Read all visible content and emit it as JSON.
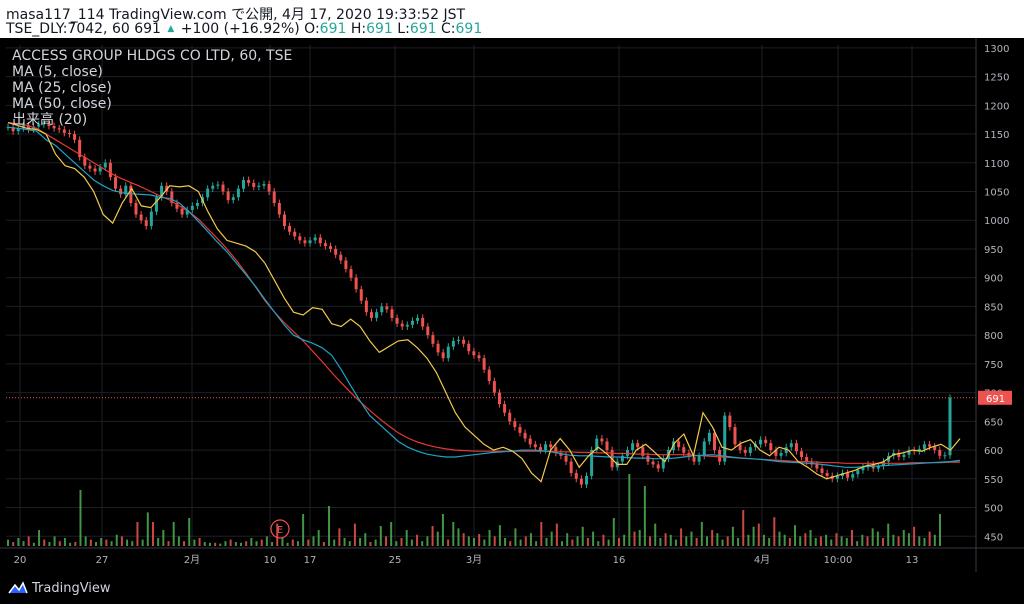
{
  "header": {
    "line1": "masa117_114 TradingView.com で公開, 4月 17, 2020 19:33:52 JST",
    "line2_prefix": "TSE_DLY:7042, 60 691",
    "line2_change": "+100 (+16.92%)",
    "o_label": "O:",
    "o_value": "691",
    "h_label": "H:",
    "h_value": "691",
    "l_label": "L:",
    "l_value": "691",
    "c_label": "C:",
    "c_value": "691"
  },
  "legend": {
    "symbol": "ACCESS GROUP HLDGS CO LTD, 60, TSE",
    "ma5": "MA (5, close)",
    "ma25": "MA (25, close)",
    "ma50": "MA (50, close)",
    "volume": "出来高 (20)"
  },
  "footer": {
    "brand": "TradingView"
  },
  "colors": {
    "up": "#26a69a",
    "down": "#ef5350",
    "ma5": "#f2c94c",
    "ma25": "#1da2c7",
    "ma50": "#e53935",
    "vol_up": "#4caf50",
    "vol_down": "#ef5350",
    "price_line": "#ef5350",
    "axis_text": "#b2b5be"
  },
  "chart_data": {
    "type": "candlestick",
    "y_ticks": [
      1300,
      1250,
      1200,
      1150,
      1100,
      1050,
      1000,
      950,
      900,
      850,
      800,
      750,
      700,
      650,
      600,
      550,
      500,
      450
    ],
    "ylim": [
      440,
      1305
    ],
    "x_ticks": [
      "20",
      "27",
      "2月",
      "10",
      "17",
      "25",
      "3月",
      "16",
      "4月",
      "10:00",
      "13"
    ],
    "last_price": 691,
    "last_price_label": "691",
    "earnings_marker": "E",
    "grid": true,
    "close_series": [
      1162,
      1155,
      1160,
      1165,
      1158,
      1163,
      1167,
      1170,
      1164,
      1160,
      1158,
      1152,
      1150,
      1140,
      1110,
      1095,
      1090,
      1085,
      1092,
      1100,
      1075,
      1055,
      1045,
      1060,
      1030,
      1010,
      1000,
      990,
      1015,
      1040,
      1060,
      1050,
      1030,
      1020,
      1010,
      1018,
      1025,
      1030,
      1040,
      1055,
      1060,
      1062,
      1050,
      1035,
      1040,
      1055,
      1070,
      1065,
      1058,
      1060,
      1063,
      1050,
      1030,
      1010,
      990,
      980,
      972,
      965,
      960,
      965,
      970,
      960,
      955,
      950,
      940,
      930,
      915,
      900,
      880,
      860,
      840,
      830,
      840,
      850,
      845,
      830,
      820,
      815,
      818,
      825,
      830,
      815,
      800,
      785,
      770,
      760,
      780,
      790,
      792,
      785,
      772,
      765,
      760,
      740,
      720,
      700,
      680,
      665,
      650,
      640,
      630,
      620,
      610,
      605,
      600,
      610,
      605,
      595,
      590,
      580,
      560,
      550,
      540,
      555,
      600,
      620,
      615,
      600,
      570,
      580,
      590,
      600,
      612,
      605,
      590,
      580,
      575,
      568,
      585,
      600,
      615,
      605,
      595,
      588,
      580,
      590,
      615,
      630,
      600,
      580,
      660,
      640,
      610,
      600,
      595,
      605,
      610,
      618,
      612,
      600,
      590,
      595,
      605,
      612,
      598,
      588,
      580,
      575,
      568,
      560,
      555,
      550,
      555,
      560,
      552,
      558,
      565,
      570,
      575,
      568,
      572,
      580,
      590,
      595,
      588,
      592,
      600,
      598,
      602,
      610,
      606,
      600,
      590,
      591,
      691
    ],
    "ma5_values": [
      1170,
      1165,
      1160,
      1158,
      1150,
      1115,
      1095,
      1090,
      1075,
      1050,
      1010,
      995,
      1030,
      1055,
      1025,
      1022,
      1040,
      1060,
      1058,
      1060,
      1050,
      1015,
      985,
      965,
      960,
      955,
      945,
      925,
      895,
      865,
      840,
      835,
      848,
      845,
      820,
      815,
      828,
      815,
      790,
      770,
      780,
      790,
      792,
      778,
      760,
      735,
      700,
      665,
      640,
      625,
      610,
      600,
      605,
      598,
      585,
      560,
      545,
      600,
      620,
      600,
      570,
      590,
      605,
      592,
      575,
      575,
      600,
      610,
      595,
      580,
      612,
      628,
      590,
      665,
      640,
      605,
      600,
      612,
      618,
      600,
      590,
      605,
      600,
      580,
      570,
      558,
      550,
      555,
      560,
      565,
      572,
      575,
      580,
      592,
      595,
      600,
      598,
      605,
      610,
      600,
      620
    ],
    "ma25_values": [
      1162,
      1160,
      1158,
      1155,
      1140,
      1130,
      1115,
      1100,
      1085,
      1070,
      1060,
      1052,
      1048,
      1046,
      1045,
      1044,
      1040,
      1038,
      1030,
      1015,
      998,
      980,
      962,
      945,
      925,
      905,
      885,
      862,
      840,
      818,
      800,
      792,
      786,
      778,
      765,
      740,
      712,
      685,
      660,
      645,
      630,
      615,
      605,
      598,
      593,
      590,
      588,
      588,
      590,
      592,
      594,
      596,
      597,
      598,
      600,
      600,
      599,
      597,
      594,
      591,
      590,
      590,
      589,
      588,
      588,
      587,
      586,
      586,
      585,
      585,
      586,
      588,
      590,
      591,
      592,
      590,
      588,
      586,
      585,
      584,
      582,
      580,
      579,
      578,
      577,
      576,
      574,
      572,
      570,
      570,
      571,
      572,
      573,
      574,
      575,
      576,
      577,
      578,
      579,
      580,
      582
    ],
    "ma50_values": [
      1170,
      1168,
      1165,
      1160,
      1150,
      1140,
      1130,
      1120,
      1110,
      1100,
      1090,
      1080,
      1072,
      1065,
      1058,
      1050,
      1042,
      1035,
      1025,
      1015,
      1002,
      985,
      968,
      950,
      930,
      908,
      884,
      860,
      840,
      822,
      806,
      790,
      772,
      754,
      735,
      717,
      700,
      684,
      669,
      655,
      642,
      630,
      621,
      614,
      609,
      605,
      602,
      600,
      599,
      598,
      598,
      598,
      598,
      598,
      598,
      598,
      598,
      598,
      597,
      597,
      596,
      596,
      595,
      595,
      594,
      594,
      593,
      593,
      592,
      592,
      592,
      592,
      591,
      590,
      589,
      588,
      587,
      586,
      585,
      584,
      583,
      582,
      581,
      580,
      580,
      579,
      578,
      578,
      577,
      577,
      577,
      577,
      577,
      577,
      577,
      578,
      578,
      578,
      578,
      579,
      579
    ],
    "volume_values": [
      8,
      5,
      10,
      6,
      12,
      4,
      20,
      8,
      5,
      12,
      6,
      10,
      4,
      5,
      70,
      12,
      8,
      5,
      10,
      8,
      6,
      14,
      12,
      8,
      6,
      30,
      8,
      42,
      30,
      10,
      20,
      6,
      30,
      12,
      6,
      35,
      8,
      10,
      5,
      4,
      4,
      3,
      6,
      8,
      5,
      4,
      6,
      10,
      6,
      8,
      12,
      5,
      28,
      10,
      4,
      8,
      6,
      40,
      8,
      12,
      20,
      5,
      50,
      8,
      22,
      10,
      6,
      28,
      10,
      16,
      5,
      8,
      25,
      12,
      30,
      6,
      10,
      20,
      8,
      14,
      6,
      12,
      25,
      18,
      40,
      8,
      30,
      22,
      16,
      12,
      10,
      15,
      8,
      20,
      12,
      26,
      10,
      6,
      22,
      8,
      12,
      16,
      6,
      30,
      10,
      18,
      28,
      6,
      16,
      8,
      12,
      24,
      10,
      18,
      6,
      14,
      8,
      35,
      10,
      14,
      90,
      18,
      20,
      75,
      12,
      28,
      10,
      16,
      14,
      8,
      22,
      12,
      18,
      10,
      30,
      12,
      20,
      16,
      8,
      12,
      24,
      10,
      45,
      14,
      24,
      28,
      14,
      10,
      36,
      18,
      14,
      10,
      26,
      12,
      16,
      20,
      10,
      12,
      14,
      8,
      16,
      12,
      10,
      20,
      6,
      14,
      12,
      22,
      18,
      10,
      28,
      14,
      12,
      20,
      16,
      24,
      12,
      10,
      18,
      14,
      40
    ]
  }
}
